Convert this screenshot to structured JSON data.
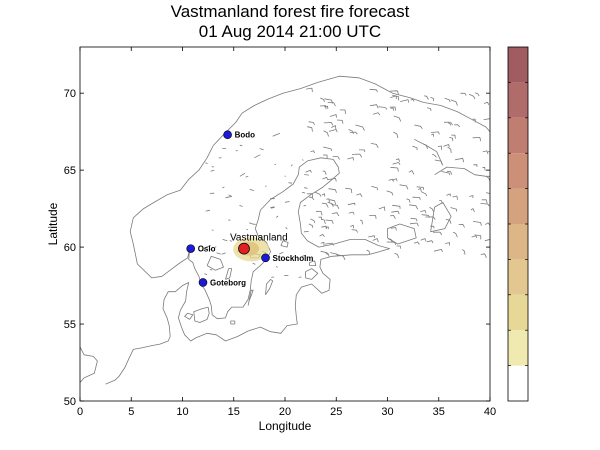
{
  "header": {
    "title": "Vastmanland forest fire forecast",
    "subtitle": "01 Aug 2014 21:00 UTC"
  },
  "chart_data": {
    "type": "map",
    "xlabel": "Longitude",
    "ylabel": "Latitude",
    "xlim": [
      0,
      40
    ],
    "ylim": [
      50,
      73
    ],
    "xticks": [
      0,
      5,
      10,
      15,
      20,
      25,
      30,
      35,
      40
    ],
    "yticks": [
      50,
      55,
      60,
      65,
      70
    ],
    "grid": false,
    "cities": [
      {
        "name": "Bodo",
        "lon": 14.4,
        "lat": 67.3,
        "color": "#1a1ad8"
      },
      {
        "name": "Oslo",
        "lon": 10.8,
        "lat": 59.9,
        "color": "#1a1ad8"
      },
      {
        "name": "Stockholm",
        "lon": 18.1,
        "lat": 59.3,
        "color": "#1a1ad8"
      },
      {
        "name": "Goteborg",
        "lon": 12.0,
        "lat": 57.7,
        "color": "#1a1ad8"
      }
    ],
    "fire": {
      "name": "Vastmanland",
      "lon": 16.0,
      "lat": 59.9,
      "color": "#e02020"
    },
    "plume_color": "#e8d890",
    "colorbar": {
      "levels": 10,
      "colors": [
        "#ffffff",
        "#f0eab0",
        "#e8d898",
        "#e2c890",
        "#dcb686",
        "#d4a27e",
        "#cc9078",
        "#c07e72",
        "#b06c6a",
        "#a05c60"
      ]
    }
  }
}
